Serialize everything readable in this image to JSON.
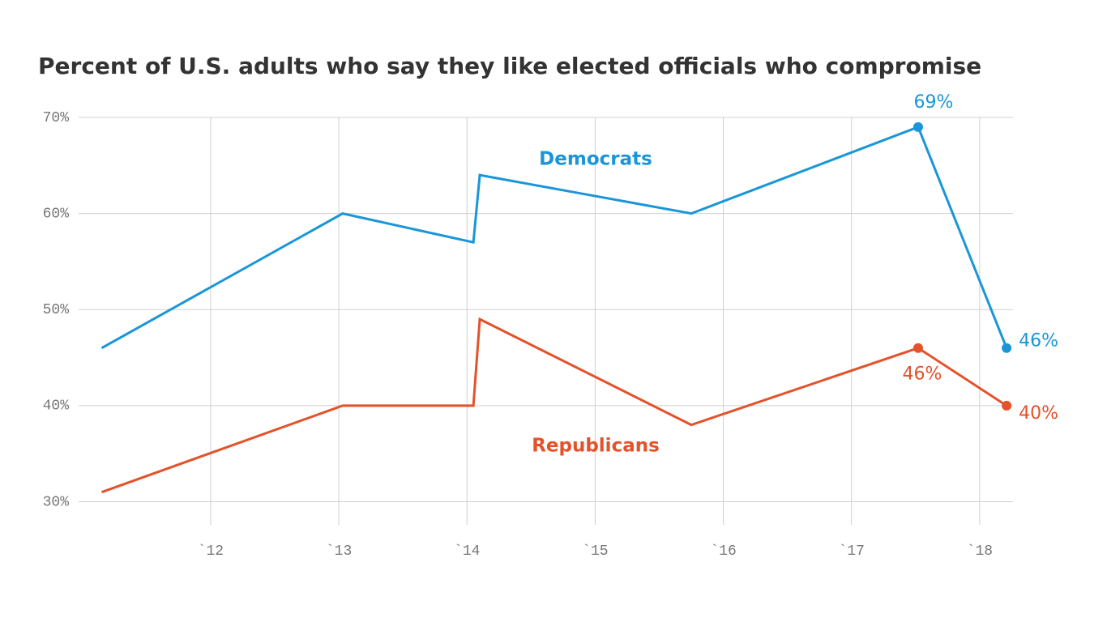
{
  "chart_data": {
    "type": "line",
    "title": "Percent of U.S. adults who say they like elected officials who compromise",
    "xlim": [
      2010.97,
      2018.26
    ],
    "xticks": [
      {
        "value": 2012,
        "label": "`12"
      },
      {
        "value": 2013,
        "label": "`13"
      },
      {
        "value": 2014,
        "label": "`14"
      },
      {
        "value": 2015,
        "label": "`15"
      },
      {
        "value": 2016,
        "label": "`16"
      },
      {
        "value": 2017,
        "label": "`17"
      },
      {
        "value": 2018,
        "label": "`18"
      }
    ],
    "ylim": [
      27.6,
      70
    ],
    "yticks": [
      {
        "value": 30,
        "label": "30%"
      },
      {
        "value": 40,
        "label": "40%"
      },
      {
        "value": 50,
        "label": "50%"
      },
      {
        "value": 60,
        "label": "60%"
      },
      {
        "value": 70,
        "label": "70%"
      }
    ],
    "grid": true,
    "series": [
      {
        "name": "Democrats",
        "color": "#1a96d8",
        "x": [
          2011.15,
          2013.03,
          2014.05,
          2014.1,
          2015.75,
          2017.52,
          2018.21
        ],
        "values": [
          46,
          60,
          57,
          64,
          60,
          69,
          46
        ],
        "value_labels": [
          null,
          null,
          null,
          null,
          null,
          "69%",
          "46%"
        ]
      },
      {
        "name": "Republicans",
        "color": "#e4522a",
        "x": [
          2011.15,
          2013.03,
          2014.05,
          2014.1,
          2015.75,
          2017.52,
          2018.21
        ],
        "values": [
          31,
          40,
          40,
          49,
          38,
          46,
          40
        ],
        "value_labels": [
          null,
          null,
          null,
          null,
          null,
          "46%",
          "40%"
        ]
      }
    ]
  }
}
